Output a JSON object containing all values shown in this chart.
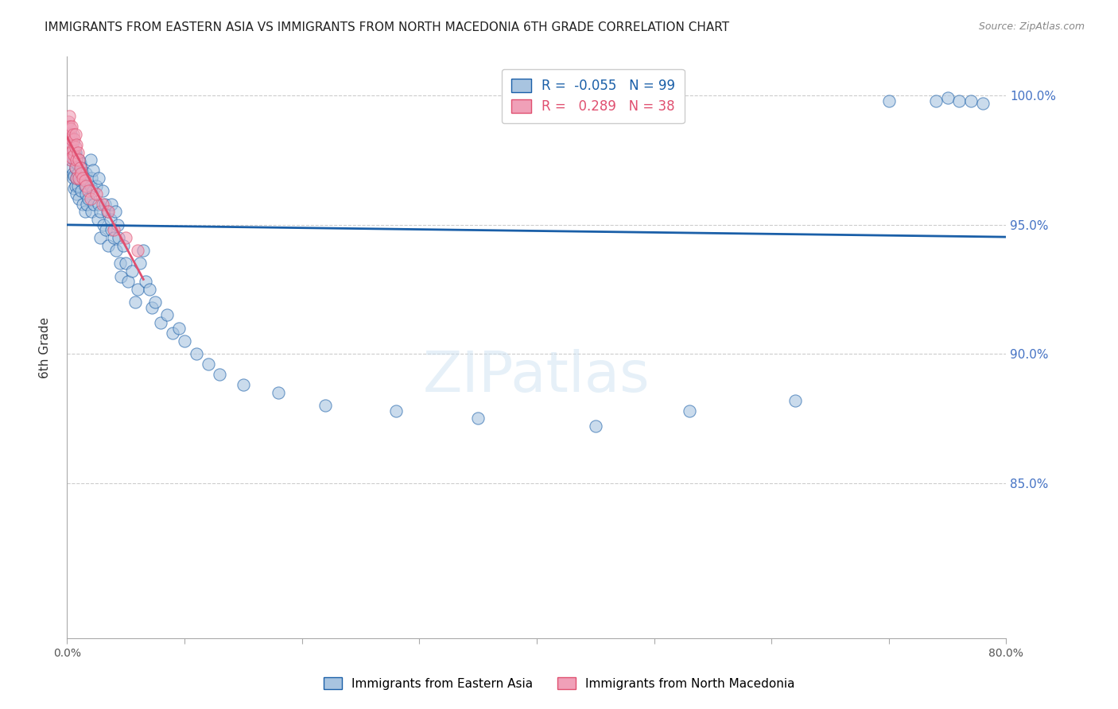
{
  "title": "IMMIGRANTS FROM EASTERN ASIA VS IMMIGRANTS FROM NORTH MACEDONIA 6TH GRADE CORRELATION CHART",
  "source": "Source: ZipAtlas.com",
  "ylabel": "6th Grade",
  "ytick_labels": [
    "100.0%",
    "95.0%",
    "90.0%",
    "85.0%"
  ],
  "ytick_values": [
    1.0,
    0.95,
    0.9,
    0.85
  ],
  "xlim": [
    0.0,
    0.8
  ],
  "ylim": [
    0.79,
    1.015
  ],
  "blue_R": -0.055,
  "blue_N": 99,
  "pink_R": 0.289,
  "pink_N": 38,
  "blue_color": "#a8c4e0",
  "pink_color": "#f0a0b8",
  "blue_line_color": "#1a5fa8",
  "pink_line_color": "#e05070",
  "legend_label_blue": "Immigrants from Eastern Asia",
  "legend_label_pink": "Immigrants from North Macedonia",
  "watermark": "ZIPatlas",
  "blue_scatter_x": [
    0.002,
    0.003,
    0.003,
    0.004,
    0.004,
    0.005,
    0.005,
    0.005,
    0.005,
    0.006,
    0.006,
    0.006,
    0.007,
    0.007,
    0.007,
    0.008,
    0.008,
    0.008,
    0.008,
    0.009,
    0.009,
    0.01,
    0.01,
    0.01,
    0.011,
    0.011,
    0.012,
    0.012,
    0.013,
    0.013,
    0.015,
    0.015,
    0.016,
    0.016,
    0.017,
    0.018,
    0.02,
    0.02,
    0.021,
    0.021,
    0.022,
    0.022,
    0.023,
    0.025,
    0.026,
    0.027,
    0.027,
    0.028,
    0.028,
    0.03,
    0.031,
    0.032,
    0.033,
    0.034,
    0.035,
    0.037,
    0.038,
    0.038,
    0.04,
    0.041,
    0.042,
    0.043,
    0.044,
    0.045,
    0.046,
    0.048,
    0.05,
    0.052,
    0.055,
    0.058,
    0.06,
    0.062,
    0.065,
    0.067,
    0.07,
    0.072,
    0.075,
    0.08,
    0.085,
    0.09,
    0.095,
    0.1,
    0.11,
    0.12,
    0.13,
    0.15,
    0.18,
    0.22,
    0.28,
    0.35,
    0.45,
    0.53,
    0.62,
    0.7,
    0.74,
    0.75,
    0.76,
    0.77,
    0.78
  ],
  "blue_scatter_y": [
    0.98,
    0.975,
    0.985,
    0.978,
    0.972,
    0.976,
    0.982,
    0.97,
    0.968,
    0.975,
    0.969,
    0.964,
    0.978,
    0.972,
    0.965,
    0.974,
    0.968,
    0.962,
    0.976,
    0.97,
    0.965,
    0.975,
    0.968,
    0.96,
    0.974,
    0.967,
    0.972,
    0.963,
    0.97,
    0.958,
    0.965,
    0.955,
    0.97,
    0.962,
    0.958,
    0.96,
    0.965,
    0.975,
    0.968,
    0.955,
    0.963,
    0.971,
    0.958,
    0.965,
    0.952,
    0.958,
    0.968,
    0.955,
    0.945,
    0.963,
    0.95,
    0.958,
    0.948,
    0.955,
    0.942,
    0.952,
    0.948,
    0.958,
    0.945,
    0.955,
    0.94,
    0.95,
    0.945,
    0.935,
    0.93,
    0.942,
    0.935,
    0.928,
    0.932,
    0.92,
    0.925,
    0.935,
    0.94,
    0.928,
    0.925,
    0.918,
    0.92,
    0.912,
    0.915,
    0.908,
    0.91,
    0.905,
    0.9,
    0.896,
    0.892,
    0.888,
    0.885,
    0.88,
    0.878,
    0.875,
    0.872,
    0.878,
    0.882,
    0.998,
    0.998,
    0.999,
    0.998,
    0.998,
    0.997
  ],
  "pink_scatter_x": [
    0.001,
    0.001,
    0.002,
    0.002,
    0.002,
    0.003,
    0.003,
    0.003,
    0.003,
    0.004,
    0.004,
    0.004,
    0.005,
    0.005,
    0.006,
    0.006,
    0.007,
    0.007,
    0.007,
    0.008,
    0.008,
    0.008,
    0.009,
    0.01,
    0.01,
    0.011,
    0.012,
    0.013,
    0.015,
    0.016,
    0.018,
    0.02,
    0.025,
    0.03,
    0.035,
    0.04,
    0.05,
    0.06
  ],
  "pink_scatter_y": [
    0.99,
    0.985,
    0.992,
    0.988,
    0.98,
    0.987,
    0.982,
    0.978,
    0.975,
    0.988,
    0.983,
    0.976,
    0.985,
    0.979,
    0.983,
    0.977,
    0.985,
    0.98,
    0.972,
    0.981,
    0.975,
    0.968,
    0.978,
    0.975,
    0.968,
    0.972,
    0.97,
    0.968,
    0.967,
    0.965,
    0.963,
    0.96,
    0.962,
    0.958,
    0.955,
    0.948,
    0.945,
    0.94
  ]
}
